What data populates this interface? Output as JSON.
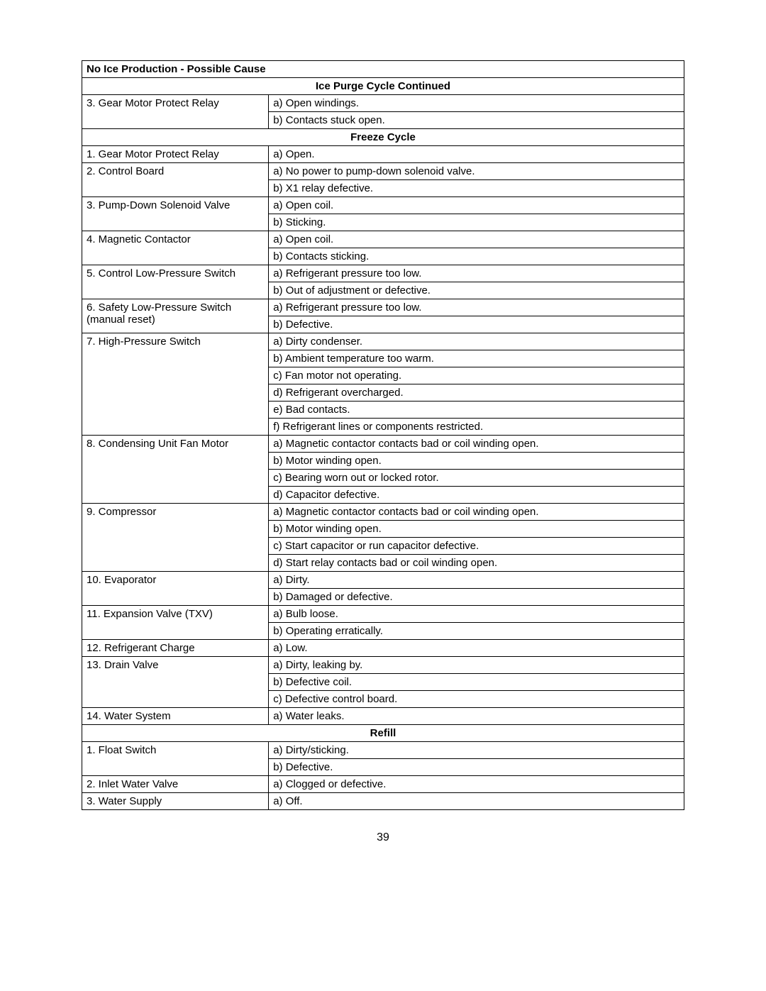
{
  "page_number": "39",
  "table": {
    "title": "No Ice Production - Possible Cause",
    "sections": [
      {
        "header": "Ice Purge Cycle Continued",
        "rows": [
          {
            "component": "3. Gear Motor Protect Relay",
            "causes": [
              "a) Open windings.",
              "b) Contacts stuck open."
            ]
          }
        ]
      },
      {
        "header": "Freeze Cycle",
        "rows": [
          {
            "component": "1. Gear Motor Protect Relay",
            "causes": [
              "a) Open."
            ]
          },
          {
            "component": "2. Control Board",
            "causes": [
              "a) No power to pump-down solenoid valve.",
              "b) X1 relay defective."
            ]
          },
          {
            "component": "3. Pump-Down Solenoid Valve",
            "causes": [
              "a) Open coil.",
              "b) Sticking."
            ]
          },
          {
            "component": "4. Magnetic Contactor",
            "causes": [
              "a) Open coil.",
              "b) Contacts sticking."
            ]
          },
          {
            "component": "5. Control Low-Pressure Switch",
            "causes": [
              "a) Refrigerant pressure too low.",
              "b) Out of adjustment or defective."
            ]
          },
          {
            "component": "6. Safety Low-Pressure Switch (manual reset)",
            "causes": [
              "a) Refrigerant pressure too low.",
              "b) Defective."
            ]
          },
          {
            "component": "7. High-Pressure Switch",
            "causes": [
              "a) Dirty condenser.",
              "b) Ambient temperature too warm.",
              "c) Fan motor not operating.",
              "d) Refrigerant overcharged.",
              "e) Bad contacts.",
              "f)  Refrigerant lines or components restricted."
            ]
          },
          {
            "component": "8. Condensing Unit Fan Motor",
            "causes": [
              "a) Magnetic contactor contacts bad or coil winding open.",
              "b) Motor winding open.",
              "c) Bearing worn out or locked rotor.",
              "d) Capacitor defective."
            ]
          },
          {
            "component": "9. Compressor",
            "causes": [
              "a) Magnetic contactor contacts bad or coil winding open.",
              "b) Motor winding open.",
              "c) Start capacitor or run capacitor defective.",
              "d) Start relay contacts bad or coil winding open."
            ]
          },
          {
            "component": "10. Evaporator",
            "causes": [
              "a) Dirty.",
              "b) Damaged or defective."
            ]
          },
          {
            "component": "11. Expansion Valve (TXV)",
            "causes": [
              "a) Bulb loose.",
              "b) Operating erratically."
            ]
          },
          {
            "component": "12. Refrigerant Charge",
            "causes": [
              "a) Low."
            ]
          },
          {
            "component": "13. Drain Valve",
            "causes": [
              "a) Dirty, leaking by.",
              "b) Defective coil.",
              "c) Defective control board."
            ]
          },
          {
            "component": "14. Water System",
            "causes": [
              "a) Water leaks."
            ]
          }
        ]
      },
      {
        "header": "Refill",
        "rows": [
          {
            "component": "1. Float Switch",
            "causes": [
              "a) Dirty/sticking.",
              "b) Defective."
            ]
          },
          {
            "component": "2. Inlet Water Valve",
            "causes": [
              "a) Clogged or defective."
            ]
          },
          {
            "component": "3. Water Supply",
            "causes": [
              "a) Off."
            ]
          }
        ]
      }
    ]
  }
}
